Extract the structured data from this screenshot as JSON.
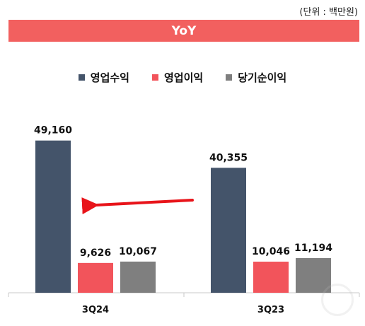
{
  "header": {
    "unit_note": "(단위 : 백만원)",
    "banner_title": "YoY"
  },
  "colors": {
    "banner": "#f2605f",
    "arrow": "#e8141a",
    "axis": "#c9c9c9"
  },
  "chart_data": {
    "type": "bar",
    "categories": [
      "3Q24",
      "3Q23"
    ],
    "series": [
      {
        "name": "영업수익",
        "values": [
          49160,
          40355
        ],
        "color": "#44546a"
      },
      {
        "name": "영업이익",
        "values": [
          9626,
          10046
        ],
        "color": "#f2545b"
      },
      {
        "name": "당기순이익",
        "values": [
          10067,
          11194
        ],
        "color": "#7f7f7f"
      }
    ],
    "ylim": [
      0,
      58000
    ],
    "grid": false,
    "legend_position": "top-center",
    "annotations": [
      {
        "type": "arrow",
        "from_category": "3Q23",
        "to_category": "3Q24"
      }
    ]
  }
}
